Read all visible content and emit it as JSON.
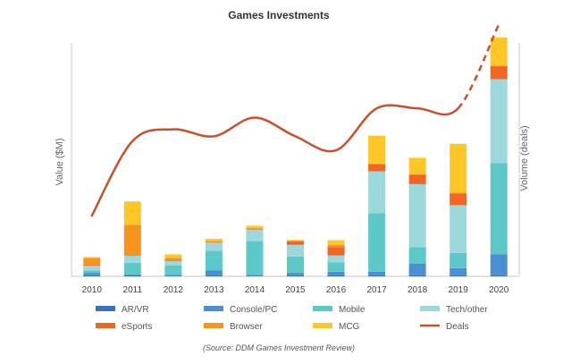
{
  "chart_data": {
    "type": "bar",
    "title": "Games Investments",
    "ylabel": "Value ($M)",
    "y2label": "Volume (deals)",
    "source": "(Source: DDM Games Investment Review)",
    "categories": [
      "2010",
      "2011",
      "2012",
      "2013",
      "2014",
      "2015",
      "2016",
      "2017",
      "2018",
      "2019",
      "2020"
    ],
    "stacked": true,
    "ylim": [
      0,
      100
    ],
    "y2lim": [
      0,
      100
    ],
    "y_axis_labeled_values": false,
    "grid": false,
    "legend_position": "bottom",
    "series": [
      {
        "name": "AR/VR",
        "color": "#3a6fba",
        "values": [
          0.5,
          0.5,
          0.3,
          0.5,
          0.3,
          0.5,
          0.5,
          0.5,
          0.5,
          0.5,
          0.5
        ]
      },
      {
        "name": "Console/PC",
        "color": "#4a8fd2",
        "values": [
          1,
          0.3,
          0.3,
          2,
          0.3,
          1,
          1.5,
          1.5,
          5,
          3,
          9
        ]
      },
      {
        "name": "Mobile",
        "color": "#5cc8c8",
        "values": [
          1,
          5,
          4,
          8.5,
          14.5,
          7,
          4,
          25,
          7,
          6.5,
          39
        ]
      },
      {
        "name": "Tech/other",
        "color": "#9cd8dc",
        "values": [
          2,
          3,
          2,
          3.5,
          5,
          5,
          3,
          18,
          27,
          20.5,
          36
        ]
      },
      {
        "name": "eSports",
        "color": "#f26522",
        "values": [
          0.3,
          0.3,
          0.3,
          0.3,
          0.3,
          1.5,
          3.5,
          3,
          4,
          5,
          5.5
        ]
      },
      {
        "name": "Browser",
        "color": "#f7941d",
        "values": [
          3,
          13,
          1,
          0.3,
          0.3,
          0.3,
          1,
          0.3,
          0.3,
          0.3,
          0.3
        ]
      },
      {
        "name": "MCG",
        "color": "#ffc726",
        "values": [
          0.5,
          10,
          1.5,
          1,
          1,
          0.3,
          2,
          12,
          7,
          21,
          12
        ]
      }
    ],
    "deals": {
      "name": "Deals",
      "color": "#c8502a",
      "values": [
        26,
        58,
        63,
        60,
        68,
        60,
        54,
        72,
        72,
        72,
        108
      ],
      "projected_from_index": 9
    }
  }
}
